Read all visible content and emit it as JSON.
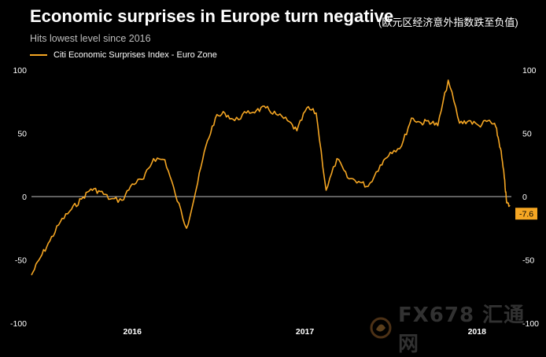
{
  "title": "Economic surprises in Europe turn negative",
  "subtitle": "Hits lowest level since 2016",
  "cn_note": "(欧元区经济意外指数跌至负值)",
  "watermark": "FX678 汇通网",
  "colors": {
    "series": "#f5a623",
    "background": "#000000",
    "zero_line": "#ffffff",
    "text": "#ffffff"
  },
  "chart_data": {
    "type": "line",
    "title": "Economic surprises in Europe turn negative",
    "subtitle": "Hits lowest level since 2016",
    "legend": "top-left",
    "grid": false,
    "ylim": [
      -100,
      100
    ],
    "yticks": [
      -100,
      -50,
      0,
      50,
      100
    ],
    "xlim": [
      "2015-06-01",
      "2018-03-15"
    ],
    "xticks": [
      {
        "label": "2016",
        "date": "2016-01-01"
      },
      {
        "label": "2017",
        "date": "2017-01-01"
      },
      {
        "label": "2018",
        "date": "2018-01-01"
      }
    ],
    "last_value_label": "-7.6",
    "series": [
      {
        "name": "Citi Economic Surprises Index - Euro Zone",
        "x": [
          "2015-06-01",
          "2015-06-20",
          "2015-07-10",
          "2015-08-01",
          "2015-08-25",
          "2015-09-15",
          "2015-10-05",
          "2015-10-25",
          "2015-11-15",
          "2015-12-10",
          "2016-01-01",
          "2016-01-25",
          "2016-02-15",
          "2016-03-10",
          "2016-04-01",
          "2016-04-25",
          "2016-05-15",
          "2016-06-05",
          "2016-06-25",
          "2016-07-15",
          "2016-08-05",
          "2016-08-30",
          "2016-09-20",
          "2016-10-10",
          "2016-11-01",
          "2016-11-25",
          "2016-12-15",
          "2017-01-05",
          "2017-01-25",
          "2017-02-15",
          "2017-03-10",
          "2017-04-01",
          "2017-04-25",
          "2017-05-15",
          "2017-06-10",
          "2017-07-01",
          "2017-07-25",
          "2017-08-15",
          "2017-09-05",
          "2017-09-20",
          "2017-10-10",
          "2017-11-01",
          "2017-11-25",
          "2017-12-15",
          "2018-01-05",
          "2018-01-25",
          "2018-02-10",
          "2018-02-20",
          "2018-02-28",
          "2018-03-05",
          "2018-03-12"
        ],
        "values": [
          -62,
          -48,
          -35,
          -20,
          -10,
          -2,
          6,
          4,
          -2,
          -3,
          10,
          14,
          30,
          29,
          2,
          -25,
          5,
          40,
          62,
          66,
          60,
          66,
          68,
          70,
          65,
          60,
          52,
          70,
          66,
          5,
          30,
          15,
          12,
          8,
          25,
          35,
          40,
          62,
          58,
          60,
          56,
          92,
          58,
          60,
          56,
          60,
          55,
          38,
          15,
          -5,
          -7.6
        ]
      }
    ]
  }
}
